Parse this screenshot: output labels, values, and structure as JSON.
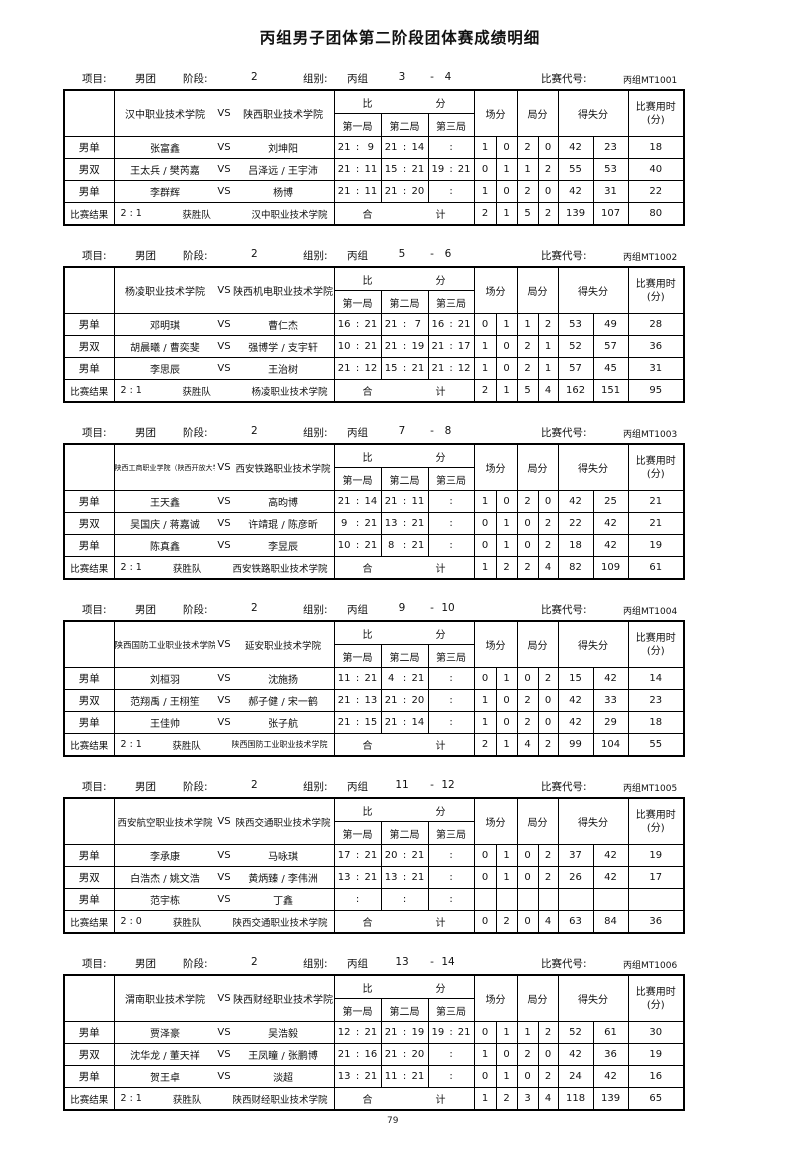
{
  "title": "丙组男子团体第二阶段团体赛成绩明细",
  "page_number": "79",
  "labels": {
    "item": "项目:",
    "item_value": "男团",
    "stage": "阶段:",
    "stage_value": "2",
    "group": "组别:",
    "group_value": "丙组",
    "dash": "-",
    "code": "比赛代号:",
    "score_bi": "比",
    "score_fen": "分",
    "game1": "第一局",
    "game2": "第二局",
    "game3": "第三局",
    "court_points": "场分",
    "game_points": "局分",
    "gain_loss": "得失分",
    "duration_line1": "比赛用时",
    "duration_line2": "(分)",
    "vs": "VS",
    "result_label": "比赛结果",
    "winner_label": "获胜队",
    "total_he": "合",
    "total_ji": "计"
  },
  "matches": [
    {
      "range": [
        "3",
        "4"
      ],
      "code": "丙组MT1001",
      "team1": "汉中职业技术学院",
      "team2": "陕西职业技术学院",
      "rows": [
        {
          "label": "男单",
          "p1": "张富鑫",
          "p2": "刘坤阳",
          "g1": [
            "21",
            "9"
          ],
          "g2": [
            "21",
            "14"
          ],
          "g3": [
            "",
            ""
          ],
          "court": [
            "1",
            "0"
          ],
          "games": [
            "2",
            "0"
          ],
          "gl": [
            "42",
            "23"
          ],
          "time": "18"
        },
        {
          "label": "男双",
          "p1": "王太兵 / 樊芮嘉",
          "p2": "吕泽远 / 王宇沛",
          "g1": [
            "21",
            "11"
          ],
          "g2": [
            "15",
            "21"
          ],
          "g3": [
            "19",
            "21"
          ],
          "court": [
            "0",
            "1"
          ],
          "games": [
            "1",
            "2"
          ],
          "gl": [
            "55",
            "53"
          ],
          "time": "40"
        },
        {
          "label": "男单",
          "p1": "李群辉",
          "p2": "杨博",
          "g1": [
            "21",
            "11"
          ],
          "g2": [
            "21",
            "20"
          ],
          "g3": [
            "",
            ""
          ],
          "court": [
            "1",
            "0"
          ],
          "games": [
            "2",
            "0"
          ],
          "gl": [
            "42",
            "31"
          ],
          "time": "22"
        }
      ],
      "result": {
        "score": "2 : 1",
        "winner": "汉中职业技术学院",
        "court": [
          "2",
          "1"
        ],
        "games": [
          "5",
          "2"
        ],
        "gl": [
          "139",
          "107"
        ],
        "time": "80"
      }
    },
    {
      "range": [
        "5",
        "6"
      ],
      "code": "丙组MT1002",
      "team1": "杨凌职业技术学院",
      "team2": "陕西机电职业技术学院",
      "rows": [
        {
          "label": "男单",
          "p1": "邓明琪",
          "p2": "曹仁杰",
          "g1": [
            "16",
            "21"
          ],
          "g2": [
            "21",
            "7"
          ],
          "g3": [
            "16",
            "21"
          ],
          "court": [
            "0",
            "1"
          ],
          "games": [
            "1",
            "2"
          ],
          "gl": [
            "53",
            "49"
          ],
          "time": "28"
        },
        {
          "label": "男双",
          "p1": "胡晨曦 / 曹奕斐",
          "p2": "强博学 / 支宇轩",
          "g1": [
            "10",
            "21"
          ],
          "g2": [
            "21",
            "19"
          ],
          "g3": [
            "21",
            "17"
          ],
          "court": [
            "1",
            "0"
          ],
          "games": [
            "2",
            "1"
          ],
          "gl": [
            "52",
            "57"
          ],
          "time": "36"
        },
        {
          "label": "男单",
          "p1": "李思辰",
          "p2": "王治树",
          "g1": [
            "21",
            "12"
          ],
          "g2": [
            "15",
            "21"
          ],
          "g3": [
            "21",
            "12"
          ],
          "court": [
            "1",
            "0"
          ],
          "games": [
            "2",
            "1"
          ],
          "gl": [
            "57",
            "45"
          ],
          "time": "31"
        }
      ],
      "result": {
        "score": "2 : 1",
        "winner": "杨凌职业技术学院",
        "court": [
          "2",
          "1"
        ],
        "games": [
          "5",
          "4"
        ],
        "gl": [
          "162",
          "151"
        ],
        "time": "95"
      }
    },
    {
      "range": [
        "7",
        "8"
      ],
      "code": "丙组MT1003",
      "team1": "陕西工商职业学院（陕西开放大学）",
      "team2": "西安铁路职业技术学院",
      "rows": [
        {
          "label": "男单",
          "p1": "王天鑫",
          "p2": "高昀博",
          "g1": [
            "21",
            "14"
          ],
          "g2": [
            "21",
            "11"
          ],
          "g3": [
            "",
            ""
          ],
          "court": [
            "1",
            "0"
          ],
          "games": [
            "2",
            "0"
          ],
          "gl": [
            "42",
            "25"
          ],
          "time": "21"
        },
        {
          "label": "男双",
          "p1": "吴国庆 / 蒋嘉诚",
          "p2": "许靖琨 / 陈彦昕",
          "g1": [
            "9",
            "21"
          ],
          "g2": [
            "13",
            "21"
          ],
          "g3": [
            "",
            ""
          ],
          "court": [
            "0",
            "1"
          ],
          "games": [
            "0",
            "2"
          ],
          "gl": [
            "22",
            "42"
          ],
          "time": "21"
        },
        {
          "label": "男单",
          "p1": "陈真鑫",
          "p2": "李昱辰",
          "g1": [
            "10",
            "21"
          ],
          "g2": [
            "8",
            "21"
          ],
          "g3": [
            "",
            ""
          ],
          "court": [
            "0",
            "1"
          ],
          "games": [
            "0",
            "2"
          ],
          "gl": [
            "18",
            "42"
          ],
          "time": "19"
        }
      ],
      "result": {
        "score": "2 : 1",
        "winner": "西安铁路职业技术学院",
        "court": [
          "1",
          "2"
        ],
        "games": [
          "2",
          "4"
        ],
        "gl": [
          "82",
          "109"
        ],
        "time": "61"
      }
    },
    {
      "range": [
        "9",
        "10"
      ],
      "code": "丙组MT1004",
      "team1": "陕西国防工业职业技术学院",
      "team2": "延安职业技术学院",
      "rows": [
        {
          "label": "男单",
          "p1": "刘桓羽",
          "p2": "沈施扬",
          "g1": [
            "11",
            "21"
          ],
          "g2": [
            "4",
            "21"
          ],
          "g3": [
            "",
            ""
          ],
          "court": [
            "0",
            "1"
          ],
          "games": [
            "0",
            "2"
          ],
          "gl": [
            "15",
            "42"
          ],
          "time": "14"
        },
        {
          "label": "男双",
          "p1": "范翔禹 / 王栩笙",
          "p2": "郝子健 / 宋一鹤",
          "g1": [
            "21",
            "13"
          ],
          "g2": [
            "21",
            "20"
          ],
          "g3": [
            "",
            ""
          ],
          "court": [
            "1",
            "0"
          ],
          "games": [
            "2",
            "0"
          ],
          "gl": [
            "42",
            "33"
          ],
          "time": "23"
        },
        {
          "label": "男单",
          "p1": "王佳帅",
          "p2": "张子航",
          "g1": [
            "21",
            "15"
          ],
          "g2": [
            "21",
            "14"
          ],
          "g3": [
            "",
            ""
          ],
          "court": [
            "1",
            "0"
          ],
          "games": [
            "2",
            "0"
          ],
          "gl": [
            "42",
            "29"
          ],
          "time": "18"
        }
      ],
      "result": {
        "score": "2 : 1",
        "winner": "陕西国防工业职业技术学院",
        "court": [
          "2",
          "1"
        ],
        "games": [
          "4",
          "2"
        ],
        "gl": [
          "99",
          "104"
        ],
        "time": "55"
      }
    },
    {
      "range": [
        "11",
        "12"
      ],
      "code": "丙组MT1005",
      "team1": "西安航空职业技术学院",
      "team2": "陕西交通职业技术学院",
      "rows": [
        {
          "label": "男单",
          "p1": "李承康",
          "p2": "马咏琪",
          "g1": [
            "17",
            "21"
          ],
          "g2": [
            "20",
            "21"
          ],
          "g3": [
            "",
            ""
          ],
          "court": [
            "0",
            "1"
          ],
          "games": [
            "0",
            "2"
          ],
          "gl": [
            "37",
            "42"
          ],
          "time": "19"
        },
        {
          "label": "男双",
          "p1": "白浩杰 / 姚文浩",
          "p2": "黄炳臻 / 李伟洲",
          "g1": [
            "13",
            "21"
          ],
          "g2": [
            "13",
            "21"
          ],
          "g3": [
            "",
            ""
          ],
          "court": [
            "0",
            "1"
          ],
          "games": [
            "0",
            "2"
          ],
          "gl": [
            "26",
            "42"
          ],
          "time": "17"
        },
        {
          "label": "男单",
          "p1": "范宇栋",
          "p2": "丁鑫",
          "g1": [
            "",
            ""
          ],
          "g2": [
            "",
            ""
          ],
          "g3": [
            "",
            ""
          ],
          "court": [
            "",
            ""
          ],
          "games": [
            "",
            ""
          ],
          "gl": [
            "",
            ""
          ],
          "time": ""
        }
      ],
      "result": {
        "score": "2 : 0",
        "winner": "陕西交通职业技术学院",
        "court": [
          "0",
          "2"
        ],
        "games": [
          "0",
          "4"
        ],
        "gl": [
          "63",
          "84"
        ],
        "time": "36"
      }
    },
    {
      "range": [
        "13",
        "14"
      ],
      "code": "丙组MT1006",
      "team1": "渭南职业技术学院",
      "team2": "陕西财经职业技术学院",
      "rows": [
        {
          "label": "男单",
          "p1": "贾泽豪",
          "p2": "吴浩毅",
          "g1": [
            "12",
            "21"
          ],
          "g2": [
            "21",
            "19"
          ],
          "g3": [
            "19",
            "21"
          ],
          "court": [
            "0",
            "1"
          ],
          "games": [
            "1",
            "2"
          ],
          "gl": [
            "52",
            "61"
          ],
          "time": "30"
        },
        {
          "label": "男双",
          "p1": "沈华龙 / 董天祥",
          "p2": "王凤瞳 / 张鹏博",
          "g1": [
            "21",
            "16"
          ],
          "g2": [
            "21",
            "20"
          ],
          "g3": [
            "",
            ""
          ],
          "court": [
            "1",
            "0"
          ],
          "games": [
            "2",
            "0"
          ],
          "gl": [
            "42",
            "36"
          ],
          "time": "19"
        },
        {
          "label": "男单",
          "p1": "贺王卓",
          "p2": "淡超",
          "g1": [
            "13",
            "21"
          ],
          "g2": [
            "11",
            "21"
          ],
          "g3": [
            "",
            ""
          ],
          "court": [
            "0",
            "1"
          ],
          "games": [
            "0",
            "2"
          ],
          "gl": [
            "24",
            "42"
          ],
          "time": "16"
        }
      ],
      "result": {
        "score": "2 : 1",
        "winner": "陕西财经职业技术学院",
        "court": [
          "1",
          "2"
        ],
        "games": [
          "3",
          "4"
        ],
        "gl": [
          "118",
          "139"
        ],
        "time": "65"
      }
    }
  ]
}
